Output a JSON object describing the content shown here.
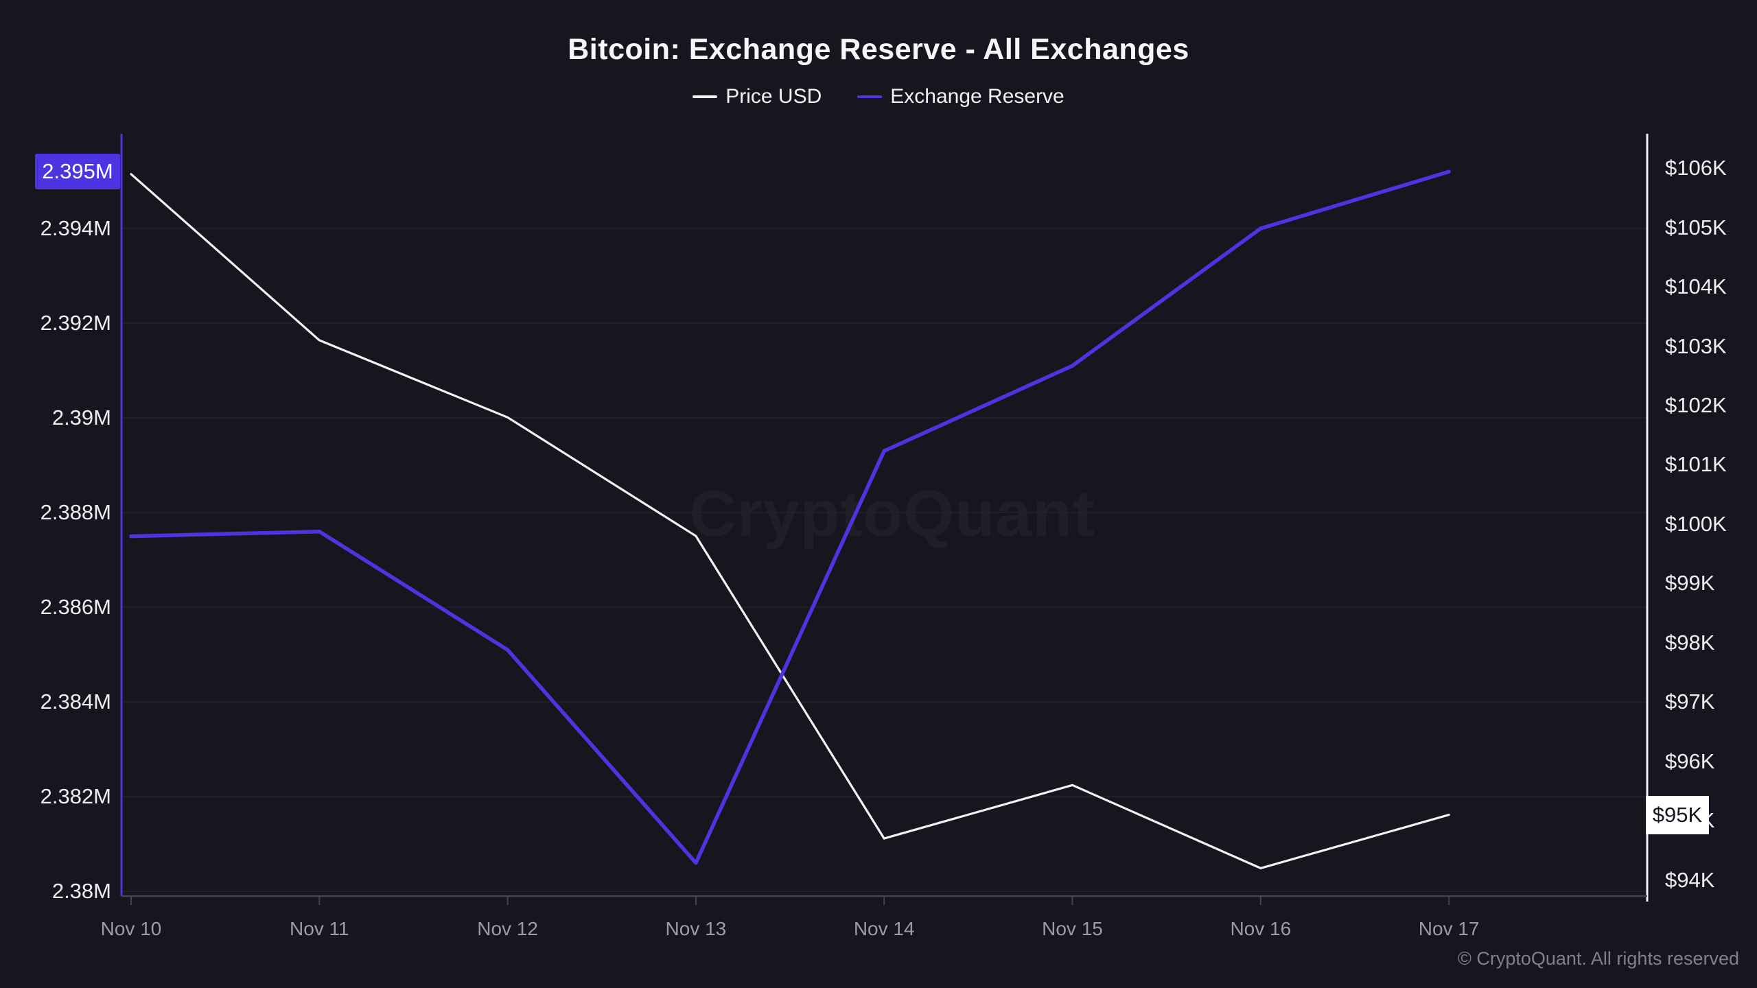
{
  "header": {
    "title": "Bitcoin: Exchange Reserve - All Exchanges",
    "legend": [
      {
        "label": "Price USD",
        "color": "#f2f1f6"
      },
      {
        "label": "Exchange Reserve",
        "color": "#4b35e0"
      }
    ]
  },
  "chart_data": {
    "type": "line",
    "title": "Bitcoin: Exchange Reserve - All Exchanges",
    "x_categories": [
      "Nov 10",
      "Nov 11",
      "Nov 12",
      "Nov 13",
      "Nov 14",
      "Nov 15",
      "Nov 16",
      "Nov 17"
    ],
    "series": [
      {
        "name": "Price USD",
        "axis": "right",
        "color": "#f2f1f6",
        "unit": "USD (thousands)",
        "values": [
          105.9,
          103.1,
          101.8,
          99.8,
          94.7,
          95.6,
          94.2,
          95.1
        ]
      },
      {
        "name": "Exchange Reserve",
        "axis": "left",
        "color": "#4b35e0",
        "unit": "BTC (millions)",
        "values": [
          2.3875,
          2.3876,
          2.3851,
          2.3806,
          2.3893,
          2.3911,
          2.394,
          2.3952
        ]
      }
    ],
    "left_axis": {
      "range": [
        2.3799,
        2.396
      ],
      "tick_values": [
        2.394,
        2.392,
        2.39,
        2.388,
        2.386,
        2.384,
        2.382,
        2.38
      ],
      "tick_labels": [
        "2.394M",
        "2.392M",
        "2.39M",
        "2.388M",
        "2.386M",
        "2.384M",
        "2.382M",
        "2.38M"
      ],
      "current_badge": "2.395M",
      "badge_bg": "#4b35e0",
      "badge_fg": "#ffffff",
      "axis_color": "#4b35e0"
    },
    "right_axis": {
      "range": [
        93.73,
        106.58
      ],
      "tick_values": [
        106,
        105,
        104,
        103,
        102,
        101,
        100,
        99,
        98,
        97,
        96,
        95,
        94
      ],
      "tick_labels": [
        "$106K",
        "$105K",
        "$104K",
        "$103K",
        "$102K",
        "$101K",
        "$100K",
        "$99K",
        "$98K",
        "$97K",
        "$96K",
        "$95K",
        "$94K"
      ],
      "current_badge": "$95K",
      "badge_bg": "#ffffff",
      "badge_fg": "#17151d",
      "axis_color": "#f2f1f6"
    },
    "grid": "horizontal",
    "grid_color": "#242230",
    "x_axis_color": "#45434d",
    "legend_position": "top",
    "watermark": "CryptoQuant"
  },
  "footer": {
    "copyright": "© CryptoQuant. All rights reserved"
  }
}
